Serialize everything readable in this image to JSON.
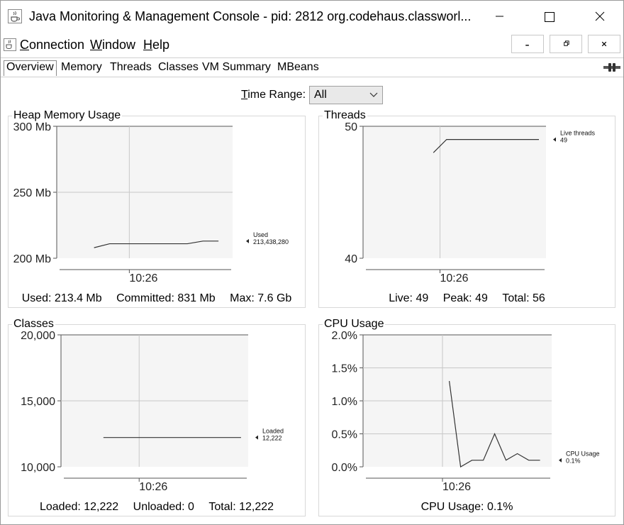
{
  "window": {
    "title": "Java Monitoring & Management Console - pid: 2812 org.codehaus.classworl..."
  },
  "menu": {
    "items": [
      {
        "mnemonic": "C",
        "rest": "onnection"
      },
      {
        "mnemonic": "W",
        "rest": "indow"
      },
      {
        "mnemonic": "H",
        "rest": "elp"
      }
    ]
  },
  "tabs": [
    "Overview",
    "Memory",
    "Threads",
    "Classes",
    "VM Summary",
    "MBeans"
  ],
  "active_tab": "Overview",
  "time_range": {
    "label_mnemonic": "T",
    "label_rest": "ime Range:",
    "selected": "All"
  },
  "panels": {
    "heap": {
      "title": "Heap Memory Usage",
      "stats": [
        "Used: 213.4 Mb",
        "Committed: 831 Mb",
        "Max: 7.6 Gb"
      ]
    },
    "threads": {
      "title": "Threads",
      "stats": [
        "Live: 49",
        "Peak: 49",
        "Total: 56"
      ]
    },
    "classes": {
      "title": "Classes",
      "stats": [
        "Loaded: 12,222",
        "Unloaded: 0",
        "Total: 12,222"
      ]
    },
    "cpu": {
      "title": "CPU Usage",
      "stats": [
        "CPU Usage: 0.1%"
      ]
    }
  },
  "colors": {
    "plot_bg": "#f5f5f5",
    "grid": "#c8c8c8",
    "line": "#333333"
  },
  "chart_data": [
    {
      "type": "line",
      "id": "heap",
      "y_ticks": [
        "300 Mb",
        "250 Mb",
        "200 Mb"
      ],
      "y_tick_values": [
        300,
        250,
        200
      ],
      "ylim": [
        200,
        300
      ],
      "x_ticks": [
        "10:26"
      ],
      "x": [
        0,
        1,
        2,
        3,
        4,
        5,
        6,
        7,
        8
      ],
      "xlim": [
        0,
        8
      ],
      "series": [
        {
          "name": "Used",
          "value_label": "213,438,280",
          "values": [
            208,
            211,
            211,
            211,
            211,
            211,
            211,
            213,
            213
          ]
        }
      ]
    },
    {
      "type": "line",
      "id": "threads",
      "y_ticks": [
        "50",
        "40"
      ],
      "y_tick_values": [
        50,
        40
      ],
      "ylim": [
        40,
        50
      ],
      "x_ticks": [
        "10:26"
      ],
      "x": [
        0,
        1,
        2,
        3,
        4,
        5,
        6,
        7,
        8
      ],
      "xlim": [
        0,
        8
      ],
      "series": [
        {
          "name": "Live threads",
          "value_label": "49",
          "values": [
            48,
            49,
            49,
            49,
            49,
            49,
            49,
            49,
            49
          ]
        }
      ]
    },
    {
      "type": "line",
      "id": "classes",
      "y_ticks": [
        "20,000",
        "15,000",
        "10,000"
      ],
      "y_tick_values": [
        20000,
        15000,
        10000
      ],
      "ylim": [
        10000,
        20000
      ],
      "x_ticks": [
        "10:26"
      ],
      "x": [
        0,
        1,
        2,
        3,
        4,
        5,
        6,
        7,
        8
      ],
      "xlim": [
        0,
        8
      ],
      "series": [
        {
          "name": "Loaded",
          "value_label": "12,222",
          "values": [
            12222,
            12222,
            12222,
            12222,
            12222,
            12222,
            12222,
            12222,
            12222
          ]
        }
      ]
    },
    {
      "type": "line",
      "id": "cpu",
      "y_ticks": [
        "2.0%",
        "1.5%",
        "1.0%",
        "0.5%",
        "0.0%"
      ],
      "y_tick_values": [
        2.0,
        1.5,
        1.0,
        0.5,
        0.0
      ],
      "ylim": [
        0,
        2.0
      ],
      "x_ticks": [
        "10:26"
      ],
      "x": [
        0,
        1,
        2,
        3,
        4,
        5,
        6,
        7,
        8
      ],
      "xlim": [
        0,
        8
      ],
      "series": [
        {
          "name": "CPU Usage",
          "value_label": "0.1%",
          "values": [
            1.3,
            0.0,
            0.1,
            0.1,
            0.5,
            0.1,
            0.2,
            0.1,
            0.1
          ]
        }
      ]
    }
  ]
}
